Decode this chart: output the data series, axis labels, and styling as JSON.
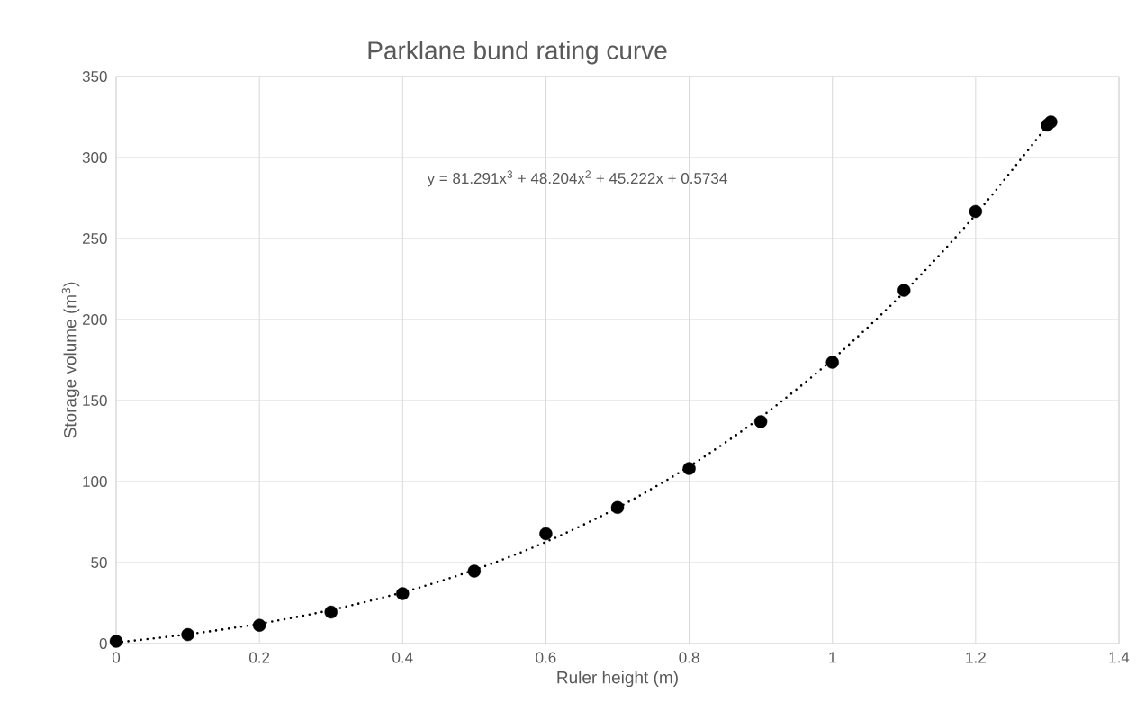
{
  "chart_data": {
    "type": "scatter",
    "title": "Parklane bund rating curve",
    "xlabel": "Ruler height (m)",
    "ylabel": "Storage volume (m$^{3}$)",
    "series": [
      {
        "color": "#000000",
        "marker": "circle",
        "x": [
          0,
          0.1,
          0.2,
          0.3,
          0.4,
          0.5,
          0.6,
          0.7,
          0.8,
          0.9,
          1.0,
          1.1,
          1.2,
          1.3,
          1.305
        ],
        "values": [
          1.4,
          5.5,
          11.3,
          19.4,
          30.8,
          44.7,
          67.8,
          84,
          108,
          137,
          173.6,
          218,
          266.7,
          320,
          322
        ]
      },
      {
        "type": "line",
        "color": "#000000",
        "line_style": "dotted",
        "marker": "none",
        "x": [
          0,
          0.1,
          0.2,
          0.3,
          0.4,
          0.5,
          0.6,
          0.7,
          0.8,
          0.9,
          1.0,
          1.1,
          1.2,
          1.3,
          1.305
        ],
        "values": [
          0.6,
          5.7,
          12.2,
          20.7,
          31.6,
          45.4,
          62.7,
          83.8,
          109.3,
          139.6,
          175.3,
          216.8,
          264.7,
          319.5,
          322
        ]
      }
    ],
    "annotations": [
      "y = 81.291x$^{3}$ + 48.204x$^{2}$ + 45.222x + 0.5734"
    ],
    "xlim": [
      0,
      1.4
    ],
    "xticks": [
      0,
      0.2,
      0.4,
      0.6,
      0.8,
      1,
      1.2,
      1.4
    ],
    "ylim": [
      0,
      350
    ],
    "yticks": [
      0,
      50,
      100,
      150,
      200,
      250,
      300,
      350
    ],
    "grid": true
  }
}
